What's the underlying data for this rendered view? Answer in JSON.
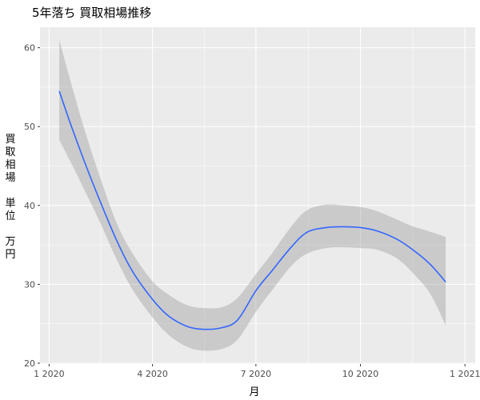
{
  "chart_data": {
    "type": "line",
    "title": "5年落ち 買取相場推移",
    "xlabel": "月",
    "ylabel": "買取相場　単位　万円",
    "ylabel_lines": [
      "買",
      "取",
      "相",
      "場",
      "",
      "単",
      "位",
      "",
      "万",
      "円"
    ],
    "x_ticks": [
      {
        "value": "2020-01-01",
        "label": "1 2020"
      },
      {
        "value": "2020-04-01",
        "label": "4 2020"
      },
      {
        "value": "2020-07-01",
        "label": "7 2020"
      },
      {
        "value": "2020-10-01",
        "label": "10 2020"
      },
      {
        "value": "2021-01-01",
        "label": "1 2021"
      }
    ],
    "y_ticks": [
      20,
      30,
      40,
      50,
      60
    ],
    "xlim": [
      "2019-12-24",
      "2021-01-10"
    ],
    "ylim": [
      19.9,
      62.6
    ],
    "grid": true,
    "series": [
      {
        "type": "smooth",
        "color": "#3366FF",
        "band_color": "#999999",
        "points": [
          {
            "x": "2020-01-10",
            "y": 54.5,
            "lo": 48.3,
            "hi": 61.0
          },
          {
            "x": "2020-01-20",
            "y": 50.3,
            "lo": 45.5,
            "hi": 55.7
          },
          {
            "x": "2020-02-01",
            "y": 45.6,
            "lo": 42.0,
            "hi": 49.7
          },
          {
            "x": "2020-02-15",
            "y": 40.5,
            "lo": 37.8,
            "hi": 43.5
          },
          {
            "x": "2020-03-01",
            "y": 35.4,
            "lo": 33.0,
            "hi": 37.6
          },
          {
            "x": "2020-03-15",
            "y": 31.5,
            "lo": 29.2,
            "hi": 33.8
          },
          {
            "x": "2020-04-01",
            "y": 28.1,
            "lo": 25.8,
            "hi": 30.4
          },
          {
            "x": "2020-04-15",
            "y": 26.0,
            "lo": 23.6,
            "hi": 28.7
          },
          {
            "x": "2020-05-01",
            "y": 24.7,
            "lo": 22.1,
            "hi": 27.4
          },
          {
            "x": "2020-05-15",
            "y": 24.3,
            "lo": 21.6,
            "hi": 27.0
          },
          {
            "x": "2020-06-01",
            "y": 24.5,
            "lo": 21.8,
            "hi": 27.1
          },
          {
            "x": "2020-06-15",
            "y": 25.5,
            "lo": 23.0,
            "hi": 28.3
          },
          {
            "x": "2020-07-01",
            "y": 29.2,
            "lo": 26.5,
            "hi": 31.3
          },
          {
            "x": "2020-07-15",
            "y": 31.7,
            "lo": 29.2,
            "hi": 33.9
          },
          {
            "x": "2020-08-01",
            "y": 34.7,
            "lo": 32.3,
            "hi": 37.3
          },
          {
            "x": "2020-08-15",
            "y": 36.6,
            "lo": 33.9,
            "hi": 39.4
          },
          {
            "x": "2020-09-01",
            "y": 37.2,
            "lo": 34.6,
            "hi": 40.1
          },
          {
            "x": "2020-09-15",
            "y": 37.3,
            "lo": 34.7,
            "hi": 40.0
          },
          {
            "x": "2020-10-01",
            "y": 37.2,
            "lo": 34.6,
            "hi": 39.8
          },
          {
            "x": "2020-10-15",
            "y": 36.8,
            "lo": 34.4,
            "hi": 39.3
          },
          {
            "x": "2020-11-01",
            "y": 35.8,
            "lo": 33.4,
            "hi": 38.3
          },
          {
            "x": "2020-11-15",
            "y": 34.5,
            "lo": 31.6,
            "hi": 37.4
          },
          {
            "x": "2020-12-01",
            "y": 32.6,
            "lo": 28.9,
            "hi": 36.7
          },
          {
            "x": "2020-12-15",
            "y": 30.3,
            "lo": 24.8,
            "hi": 36.0
          }
        ]
      }
    ]
  }
}
